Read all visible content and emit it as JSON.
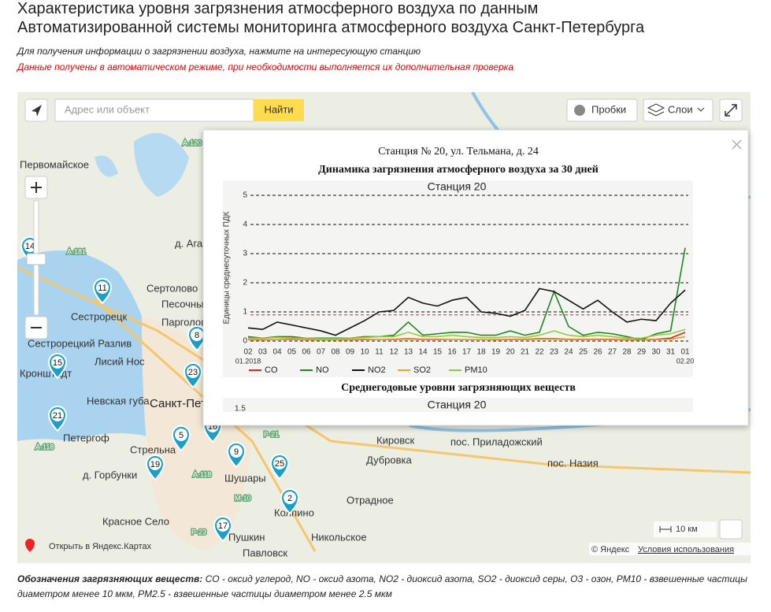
{
  "header": {
    "title_line1": "Характеристика уровня загрязнения атмосферного воздуха по данным",
    "title_line2": "Автоматизированной системы мониторинга атмосферного воздуха Санкт-Петербурга",
    "hint": "Для получения информации о загрязнении воздуха, нажмите на интересующую станцию",
    "warning": "Данные получены в автоматическом режиме, при необходимости выполняется их дополнительная проверка"
  },
  "map": {
    "search_placeholder": "Адрес или объект",
    "search_button": "Найти",
    "traffic": "Пробки",
    "layers": "Слои",
    "scale": "10 км",
    "open_link": "Открыть в Яндекс.Картах",
    "copyright": "© Яндекс",
    "terms": "Условия использования",
    "places": [
      "Первомайское",
      "А-120",
      "д. Агалатово",
      "А-181",
      "Сертолово",
      "Песочный",
      "Сестрорецк",
      "Парголово",
      "Сестрорецкий Разлив",
      "Лисий Нос",
      "Кронштадт",
      "Невская губа",
      "Санкт-Петербург",
      "Петергоф",
      "Стрельна",
      "д. Горбунки",
      "А-118",
      "А-118",
      "Р-21",
      "Шушары",
      "М-10",
      "Кировск",
      "Дубровка",
      "пос. Приладожский",
      "пос. Назия",
      "Отрадное",
      "Колпино",
      "Красное Село",
      "Р-23",
      "Пушкин",
      "Никольское",
      "Павловск"
    ],
    "stations": [
      "14",
      "11",
      "8",
      "23",
      "15",
      "21",
      "5",
      "16",
      "19",
      "9",
      "25",
      "2",
      "17"
    ]
  },
  "popup": {
    "title": "Станция № 20, ул. Тельмана, д. 24",
    "subtitle": "Динамика загрязнения атмосферного воздуха за 30 дней",
    "chart_data": {
      "type": "line",
      "title": "Станция 20",
      "y_label": "Единицы среднесуточных ПДК",
      "categories": [
        "02",
        "03",
        "04",
        "05",
        "06",
        "07",
        "08",
        "09",
        "10",
        "11",
        "12",
        "13",
        "14",
        "15",
        "16",
        "17",
        "18",
        "19",
        "20",
        "21",
        "22",
        "23",
        "24",
        "25",
        "26",
        "27",
        "28",
        "29",
        "30",
        "31",
        "01"
      ],
      "x_start_label": "01.2018",
      "x_end_label": "02.20",
      "ylim": [
        0,
        5
      ],
      "yticks": [
        0,
        1,
        2,
        3,
        4,
        5
      ],
      "reference_line": 0.9,
      "series": [
        {
          "name": "CO",
          "color": "#e8201c",
          "values": [
            0.05,
            0.05,
            0.05,
            0.06,
            0.05,
            0.05,
            0.05,
            0.05,
            0.06,
            0.05,
            0.06,
            0.08,
            0.06,
            0.06,
            0.05,
            0.05,
            0.05,
            0.05,
            0.06,
            0.06,
            0.08,
            0.08,
            0.06,
            0.06,
            0.06,
            0.06,
            0.05,
            0.05,
            0.06,
            0.1,
            0.3
          ]
        },
        {
          "name": "NO",
          "color": "#1e8a1e",
          "values": [
            0.15,
            0.1,
            0.15,
            0.15,
            0.1,
            0.1,
            0.1,
            0.1,
            0.15,
            0.15,
            0.2,
            0.65,
            0.2,
            0.25,
            0.3,
            0.3,
            0.2,
            0.2,
            0.35,
            0.2,
            0.3,
            1.7,
            0.5,
            0.2,
            0.3,
            0.25,
            0.15,
            0.05,
            0.25,
            0.35,
            3.2
          ]
        },
        {
          "name": "NO2",
          "color": "#111111",
          "values": [
            0.45,
            0.4,
            0.65,
            0.55,
            0.45,
            0.35,
            0.2,
            0.45,
            0.7,
            1.0,
            1.05,
            1.5,
            1.3,
            1.2,
            1.4,
            1.5,
            1.0,
            0.95,
            0.85,
            1.05,
            1.8,
            1.7,
            1.4,
            1.1,
            1.4,
            1.0,
            0.65,
            0.75,
            0.7,
            1.3,
            1.75
          ]
        },
        {
          "name": "SO2",
          "color": "#f0a020",
          "values": [
            0.04,
            0.04,
            0.05,
            0.05,
            0.04,
            0.04,
            0.04,
            0.04,
            0.05,
            0.05,
            0.05,
            0.06,
            0.05,
            0.05,
            0.05,
            0.05,
            0.05,
            0.04,
            0.05,
            0.05,
            0.06,
            0.06,
            0.05,
            0.05,
            0.05,
            0.05,
            0.04,
            0.04,
            0.05,
            0.06,
            0.15
          ]
        },
        {
          "name": "PM10",
          "color": "#8ad040",
          "values": [
            0.1,
            0.1,
            0.12,
            0.1,
            0.1,
            0.08,
            0.08,
            0.1,
            0.12,
            0.15,
            0.15,
            0.3,
            0.15,
            0.15,
            0.2,
            0.15,
            0.12,
            0.12,
            0.15,
            0.12,
            0.2,
            0.35,
            0.2,
            0.15,
            0.2,
            0.15,
            0.1,
            0.1,
            0.2,
            0.25,
            0.4
          ]
        }
      ]
    },
    "second_title": "Среднегодовые уровни загрязняющих веществ",
    "second_chart_title": "Станция 20",
    "second_tick": "1.5"
  },
  "footer": {
    "legend_title": "Обозначения загрязняющих веществ:",
    "legend_text": " CO - оксид углерод, NO - оксид азота, NO2 - диоксид азота, SO2 - диоксид серы, O3 - озон, PM10 - взвешенные частицы диаметром менее 10 мкм, PM2.5 - взвешенные частицы диаметром менее 2.5 мкм"
  }
}
